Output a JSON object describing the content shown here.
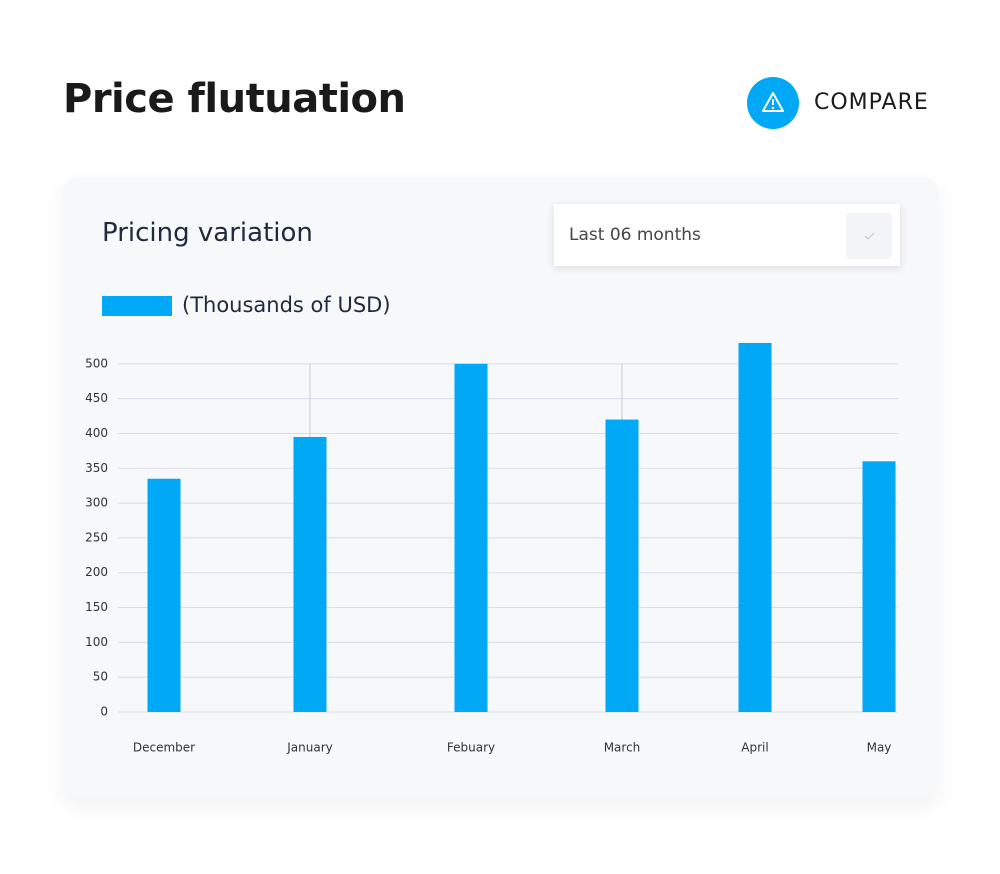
{
  "header": {
    "title": "Price flutuation",
    "button": "COMPARE"
  },
  "card": {
    "title": "Pricing variation",
    "dropdown": "Last 06 months"
  },
  "chart_data": {
    "type": "bar",
    "legend": "(Thousands of USD)",
    "categories": [
      "December",
      "January",
      "Febuary",
      "March",
      "April",
      "May"
    ],
    "values": [
      335,
      395,
      500,
      420,
      530,
      360
    ],
    "color": "#00a8f5",
    "ylim": [
      0,
      540
    ],
    "yticks": [
      0,
      50,
      100,
      150,
      200,
      250,
      300,
      350,
      400,
      450,
      500
    ],
    "grid": true
  }
}
